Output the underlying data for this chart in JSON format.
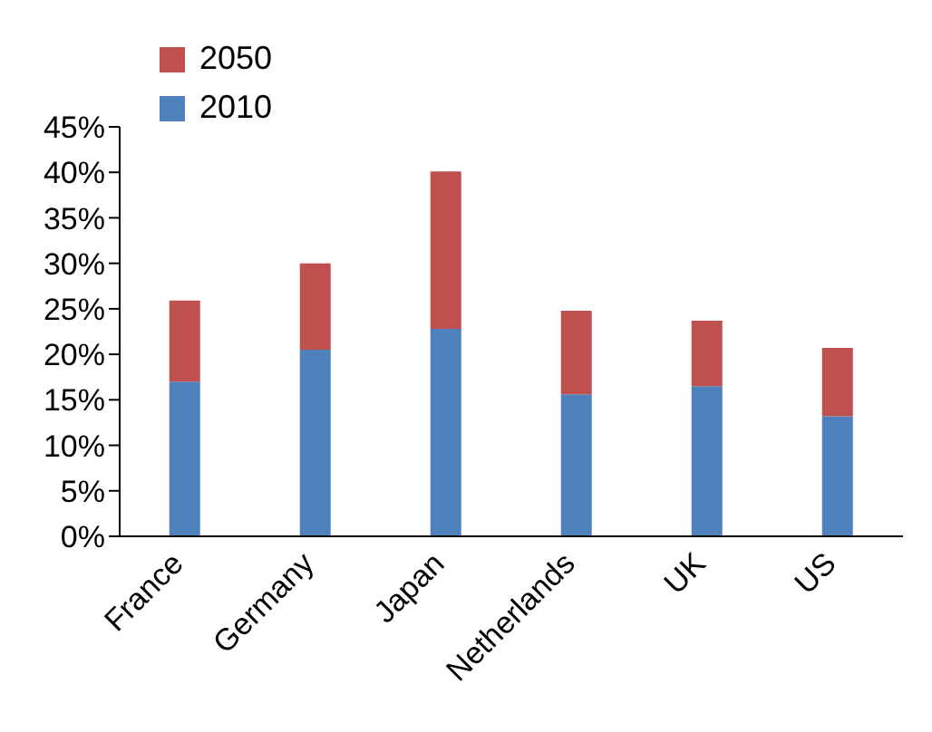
{
  "chart_data": {
    "type": "bar",
    "stacked": true,
    "categories": [
      "France",
      "Germany",
      "Japan",
      "Netherlands",
      "UK",
      "US"
    ],
    "series": [
      {
        "name": "2010",
        "color": "#4f81bd",
        "values": [
          17,
          20.5,
          22.8,
          15.6,
          16.5,
          13.2
        ]
      },
      {
        "name": "2050",
        "color": "#c0504d",
        "values": [
          8.9,
          9.5,
          17.3,
          9.2,
          7.2,
          7.5
        ]
      }
    ],
    "ylim": [
      0,
      45
    ],
    "yticks": [
      {
        "value": 0,
        "label": "0%"
      },
      {
        "value": 5,
        "label": "5%"
      },
      {
        "value": 10,
        "label": "10%"
      },
      {
        "value": 15,
        "label": "15%"
      },
      {
        "value": 20,
        "label": "20%"
      },
      {
        "value": 25,
        "label": "25%"
      },
      {
        "value": 30,
        "label": "30%"
      },
      {
        "value": 35,
        "label": "35%"
      },
      {
        "value": 40,
        "label": "40%"
      },
      {
        "value": 45,
        "label": "45%"
      }
    ],
    "grid": false,
    "legend": "top left"
  }
}
